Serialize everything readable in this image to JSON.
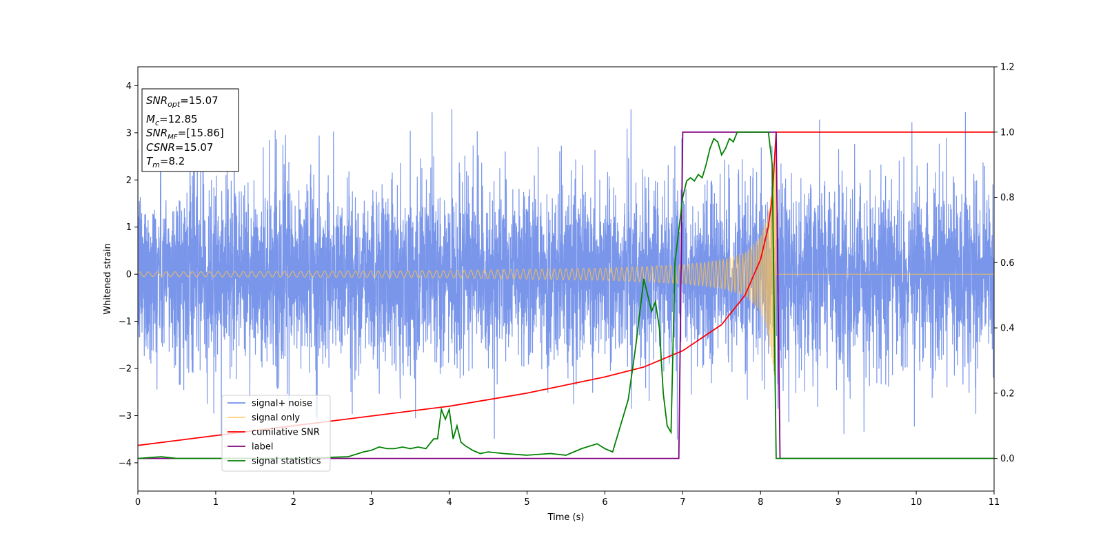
{
  "chart_data": {
    "type": "line",
    "xlabel": "Time (s)",
    "ylabel": "Whitened strain",
    "xlim": [
      0,
      11
    ],
    "ylim_left": [
      -4.6,
      4.4
    ],
    "ylim_right": [
      -0.1,
      1.2
    ],
    "x_ticks": [
      0,
      1,
      2,
      3,
      4,
      5,
      6,
      7,
      8,
      9,
      10,
      11
    ],
    "x_tick_labels": [
      "0",
      "1",
      "2",
      "3",
      "4",
      "5",
      "6",
      "7",
      "8",
      "9",
      "10",
      "11"
    ],
    "y_left_ticks": [
      -4,
      -3,
      -2,
      -1,
      0,
      1,
      2,
      3,
      4
    ],
    "y_left_tick_labels": [
      "−4",
      "−3",
      "−2",
      "−1",
      "0",
      "1",
      "2",
      "3",
      "4"
    ],
    "y_right_ticks": [
      0.0,
      0.2,
      0.4,
      0.6,
      0.8,
      1.0,
      1.2
    ],
    "y_right_tick_labels": [
      "0.0",
      "0.2",
      "0.4",
      "0.6",
      "0.8",
      "1.0",
      "1.2"
    ],
    "annotation": {
      "snr_opt": {
        "sym": "SNR",
        "sub": "opt",
        "val": "=15.07"
      },
      "mc": {
        "sym": "M",
        "sub": "c",
        "val": "=12.85"
      },
      "snr_mf": {
        "sym": "SNR",
        "sub": "MF",
        "val": "=[15.86]"
      },
      "csnr": {
        "sym": "CSNR",
        "val": "=15.07"
      },
      "tm": {
        "sym": "T",
        "sub": "m",
        "val": "=8.2"
      }
    },
    "series": [
      {
        "name": "signal+ noise",
        "axis": "left",
        "color": "#4169e1",
        "description_of_values": "dense white-noise strain spanning t=0..11 s, amplitude mostly within ±2.5, occasional peaks to about 3.5 and troughs to about -4.2",
        "noise_std": 1.0,
        "peak_max": 3.5,
        "trough_min": -4.2
      },
      {
        "name": "signal only",
        "axis": "left",
        "color": "#ffc04d",
        "description_of_values": "chirp oscillation centred at 0, amplitude growing from about 0.05 at t=0 to about 2.5 at merger t=8.2, then zero",
        "amp_t": [
          0,
          2,
          4,
          6,
          7,
          7.5,
          7.8,
          8.0,
          8.1,
          8.2
        ],
        "amp": [
          0.05,
          0.06,
          0.08,
          0.13,
          0.2,
          0.3,
          0.45,
          0.8,
          1.3,
          2.5
        ],
        "merger_t": 8.2
      },
      {
        "name": "cumilative SNR",
        "axis": "right",
        "color": "#ff0000",
        "x": [
          0,
          1,
          2,
          3,
          4,
          5,
          6,
          6.5,
          7,
          7.5,
          7.8,
          8.0,
          8.1,
          8.15,
          8.2,
          11
        ],
        "y": [
          0.04,
          0.07,
          0.1,
          0.13,
          0.16,
          0.2,
          0.25,
          0.28,
          0.33,
          0.41,
          0.5,
          0.61,
          0.71,
          0.8,
          1.0,
          1.0
        ]
      },
      {
        "name": "label",
        "axis": "right",
        "color": "#800080",
        "x": [
          0,
          6.95,
          7.0,
          8.2,
          8.25,
          11
        ],
        "y": [
          0.0,
          0.0,
          1.0,
          1.0,
          0.0,
          0.0
        ]
      },
      {
        "name": "signal statistics",
        "axis": "right",
        "color": "#008000",
        "x": [
          0,
          0.3,
          0.5,
          1,
          2,
          2.7,
          2.9,
          3.0,
          3.1,
          3.2,
          3.3,
          3.4,
          3.5,
          3.6,
          3.7,
          3.8,
          3.85,
          3.9,
          3.95,
          4.0,
          4.05,
          4.1,
          4.15,
          4.2,
          4.3,
          4.4,
          4.5,
          4.7,
          5.0,
          5.3,
          5.5,
          5.7,
          5.9,
          6.0,
          6.1,
          6.2,
          6.3,
          6.4,
          6.5,
          6.55,
          6.6,
          6.65,
          6.7,
          6.75,
          6.8,
          6.85,
          6.9,
          6.95,
          7.0,
          7.05,
          7.1,
          7.15,
          7.2,
          7.25,
          7.3,
          7.35,
          7.4,
          7.45,
          7.5,
          7.55,
          7.6,
          7.65,
          7.7,
          7.8,
          8.0,
          8.1,
          8.15,
          8.2,
          8.25,
          8.3,
          11
        ],
        "y": [
          0.0,
          0.005,
          0.0,
          0.0,
          0.0,
          0.005,
          0.02,
          0.025,
          0.035,
          0.03,
          0.03,
          0.035,
          0.03,
          0.035,
          0.03,
          0.06,
          0.06,
          0.15,
          0.12,
          0.15,
          0.06,
          0.1,
          0.05,
          0.04,
          0.025,
          0.015,
          0.02,
          0.015,
          0.01,
          0.015,
          0.01,
          0.03,
          0.045,
          0.03,
          0.02,
          0.1,
          0.18,
          0.35,
          0.55,
          0.5,
          0.45,
          0.48,
          0.4,
          0.2,
          0.1,
          0.08,
          0.6,
          0.7,
          0.8,
          0.85,
          0.86,
          0.85,
          0.87,
          0.86,
          0.9,
          0.95,
          0.98,
          0.97,
          0.93,
          0.95,
          0.98,
          0.97,
          1.0,
          1.0,
          1.0,
          1.0,
          0.9,
          0.0,
          0.0,
          0.0,
          0.0
        ]
      }
    ],
    "legend_position": "lower-left"
  }
}
